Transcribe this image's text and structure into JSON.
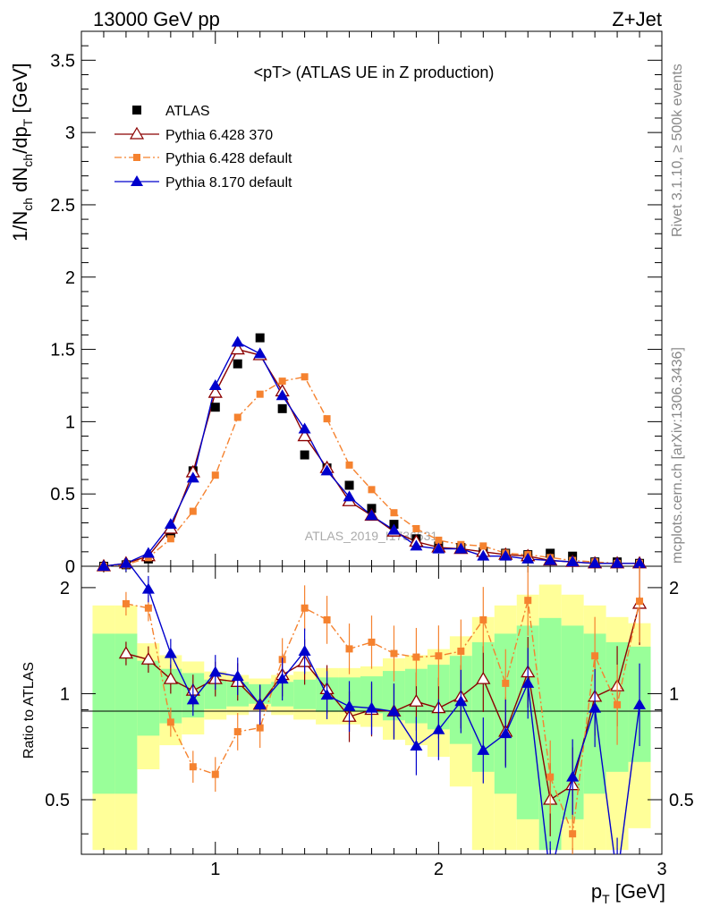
{
  "header": {
    "left": "13000 GeV pp",
    "right": "Z+Jet"
  },
  "side_labels": {
    "rivet": "Rivet 3.1.10, ≥ 500k events",
    "mcplots": "mcplots.cern.ch [arXiv:1306.3436]"
  },
  "watermark": "ATLAS_2019_I1736531",
  "chart_data": [
    {
      "type": "scatter",
      "title": "<pT> (ATLAS UE in Z production)",
      "ylabel_main": "1/N",
      "ylabel_sub1": "ch",
      "ylabel_mid": " dN",
      "ylabel_sub2": "ch",
      "ylabel_mid2": "/dp",
      "ylabel_sub3": "T",
      "ylabel_end": " [GeV]",
      "xlim": [
        0.4,
        3.0
      ],
      "ylim": [
        0,
        3.7
      ],
      "yticks": [
        "0",
        "0.5",
        "1",
        "1.5",
        "2",
        "2.5",
        "3",
        "3.5"
      ],
      "legend_position": "top-left",
      "x": [
        0.5,
        0.6,
        0.7,
        0.8,
        0.9,
        1.0,
        1.1,
        1.2,
        1.3,
        1.4,
        1.5,
        1.6,
        1.7,
        1.8,
        1.9,
        2.0,
        2.1,
        2.2,
        2.3,
        2.4,
        2.5,
        2.6,
        2.7,
        2.8,
        2.9
      ],
      "series": [
        {
          "name": "ATLAS",
          "color": "#000000",
          "style": "data",
          "values": [
            0.0,
            0.01,
            0.05,
            0.23,
            0.66,
            1.1,
            1.4,
            1.58,
            1.09,
            0.77,
            0.68,
            0.56,
            0.4,
            0.29,
            0.19,
            0.14,
            0.13,
            0.1,
            0.09,
            0.08,
            0.09,
            0.07,
            0.03,
            0.03,
            0.02
          ]
        },
        {
          "name": "Pythia 6.428 370",
          "color": "#8b0000",
          "style": "solid",
          "values": [
            0.0,
            0.02,
            0.07,
            0.26,
            0.65,
            1.2,
            1.5,
            1.46,
            1.21,
            0.9,
            0.68,
            0.45,
            0.35,
            0.24,
            0.17,
            0.13,
            0.12,
            0.1,
            0.08,
            0.07,
            0.04,
            0.03,
            0.02,
            0.02,
            0.02
          ]
        },
        {
          "name": "Pythia 6.428 default",
          "color": "#f5822f",
          "style": "dashdot",
          "values": [
            0.0,
            0.01,
            0.06,
            0.19,
            0.38,
            0.63,
            1.03,
            1.19,
            1.28,
            1.31,
            1.02,
            0.7,
            0.53,
            0.37,
            0.26,
            0.18,
            0.15,
            0.14,
            0.09,
            0.08,
            0.06,
            0.04,
            0.03,
            0.02,
            0.02
          ]
        },
        {
          "name": "Pythia 8.170 default",
          "color": "#0000cc",
          "style": "solid",
          "values": [
            0.0,
            0.02,
            0.09,
            0.29,
            0.61,
            1.25,
            1.55,
            1.47,
            1.18,
            0.95,
            0.66,
            0.48,
            0.35,
            0.25,
            0.14,
            0.12,
            0.12,
            0.07,
            0.07,
            0.05,
            0.04,
            0.03,
            0.02,
            0.02,
            0.02
          ]
        }
      ]
    },
    {
      "type": "line",
      "ylabel": "Ratio to ATLAS",
      "xlabel": "p",
      "xlabel_sub": "T",
      "xlabel_unit": " [GeV]",
      "xlim": [
        0.4,
        3.0
      ],
      "ylim": [
        0.35,
        2.3
      ],
      "xticks": [
        "1",
        "2",
        "3"
      ],
      "yticks": [
        "0.5",
        "1",
        "2"
      ],
      "band_colors": {
        "inner": "#99ff99",
        "outer": "#ffff99"
      },
      "x": [
        0.6,
        0.7,
        0.8,
        0.9,
        1.0,
        1.1,
        1.2,
        1.3,
        1.4,
        1.5,
        1.6,
        1.7,
        1.8,
        1.9,
        2.0,
        2.1,
        2.2,
        2.3,
        2.4,
        2.5,
        2.6,
        2.7,
        2.8,
        2.9
      ],
      "series": [
        {
          "name": "Pythia 6.428 370",
          "color": "#8b0000",
          "values": [
            1.3,
            1.25,
            1.1,
            1.02,
            1.1,
            1.08,
            0.93,
            1.13,
            1.23,
            1.03,
            0.86,
            0.9,
            0.89,
            0.95,
            0.91,
            0.98,
            1.1,
            0.78,
            1.15,
            0.5,
            0.55,
            0.98,
            1.05,
            1.8
          ]
        },
        {
          "name": "Pythia 6.428 default",
          "color": "#f5822f",
          "values": [
            1.8,
            1.75,
            0.83,
            0.62,
            0.59,
            0.78,
            0.8,
            1.25,
            1.75,
            1.62,
            1.34,
            1.4,
            1.3,
            1.27,
            1.28,
            1.32,
            1.62,
            1.07,
            1.84,
            0.58,
            0.4,
            1.28,
            0.93,
            1.83
          ]
        },
        {
          "name": "Pythia 8.170 default",
          "color": "#0000cc",
          "values": [
            2.4,
            1.98,
            1.3,
            0.96,
            1.15,
            1.12,
            0.93,
            1.1,
            1.32,
            0.99,
            0.92,
            0.91,
            0.89,
            0.71,
            0.79,
            0.95,
            0.69,
            0.77,
            1.07,
            0.3,
            0.58,
            0.91,
            0.3,
            0.93
          ]
        }
      ]
    }
  ]
}
